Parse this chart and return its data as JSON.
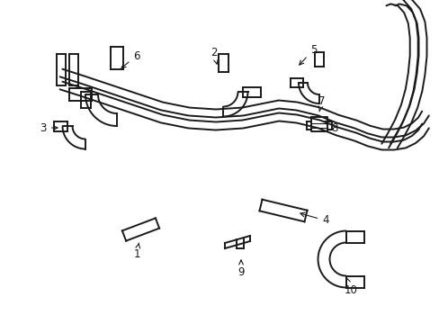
{
  "bg_color": "#ffffff",
  "line_color": "#1a1a1a",
  "lw": 1.4,
  "figsize": [
    4.89,
    3.6
  ],
  "dpi": 100
}
